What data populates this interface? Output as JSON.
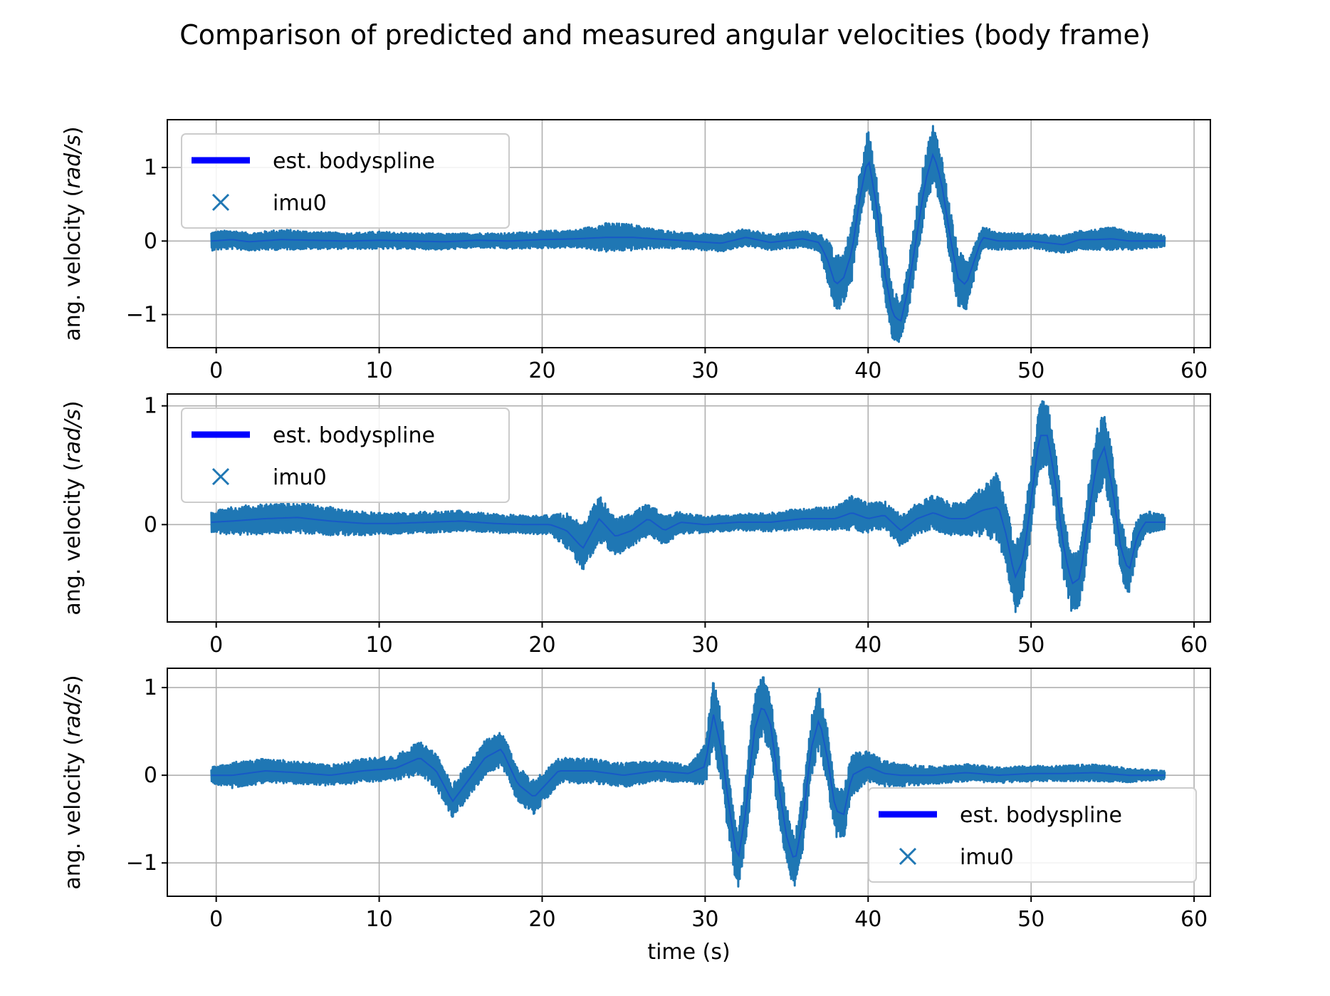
{
  "figure": {
    "title": "Comparison of predicted and measured angular velocities (body frame)"
  },
  "colors": {
    "imu": "#1f77b4",
    "spline": "#0000ff",
    "grid": "#b0b0b0",
    "axis": "#000000",
    "legend_edge": "#cccccc"
  },
  "chart_data": [
    {
      "type": "line",
      "panel": "top",
      "xlim": [
        -3,
        61
      ],
      "ylim": [
        -1.45,
        1.65
      ],
      "xticks": [
        0,
        10,
        20,
        30,
        40,
        50,
        60
      ],
      "xtick_labels": [
        "0",
        "10",
        "20",
        "30",
        "40",
        "50",
        "60"
      ],
      "yticks": [
        1,
        0,
        -1
      ],
      "ytick_labels": [
        "1",
        "0",
        "−1"
      ],
      "xlabel": "",
      "ylabel": "ang. velocity (rad/s)",
      "ylabel_plain": "ang. velocity (",
      "ylabel_unit": "rad/s",
      "ylabel_close": ")",
      "grid": true,
      "legend_position": "upper left",
      "series": [
        {
          "name": "est. bodyspline",
          "style": "thick line"
        },
        {
          "name": "imu0",
          "marker": "x"
        }
      ],
      "x": [
        -0.3,
        1,
        2,
        4,
        6,
        8,
        10,
        12,
        14,
        16,
        18,
        20,
        22,
        24,
        25.5,
        27,
        29,
        31,
        32.5,
        34,
        36,
        37,
        37.5,
        38,
        38.5,
        39,
        39.5,
        40,
        40.5,
        41,
        41.5,
        42,
        42.5,
        43,
        43.5,
        44,
        44.5,
        45,
        45.5,
        46,
        47,
        48,
        50,
        52,
        53,
        54,
        55,
        56,
        57,
        58.2
      ],
      "center": [
        0,
        0.02,
        -0.01,
        0.02,
        0.01,
        0,
        0.01,
        0,
        -0.01,
        0.01,
        0,
        0.02,
        0.03,
        0.05,
        0.05,
        0.03,
        0,
        -0.03,
        0.05,
        -0.02,
        0.03,
        -0.02,
        -0.25,
        -0.6,
        -0.5,
        -0.15,
        0.6,
        1.15,
        0.5,
        -0.4,
        -1.0,
        -1.1,
        -0.6,
        0.1,
        0.8,
        1.2,
        0.8,
        0.1,
        -0.5,
        -0.6,
        0.05,
        0,
        0,
        -0.05,
        0.02,
        0.02,
        0.03,
        0,
        0,
        0
      ],
      "amplitude": [
        0.13,
        0.13,
        0.12,
        0.14,
        0.12,
        0.11,
        0.12,
        0.11,
        0.11,
        0.1,
        0.11,
        0.12,
        0.12,
        0.2,
        0.18,
        0.13,
        0.11,
        0.12,
        0.12,
        0.11,
        0.11,
        0.12,
        0.3,
        0.4,
        0.35,
        0.4,
        0.4,
        0.4,
        0.4,
        0.4,
        0.35,
        0.3,
        0.35,
        0.4,
        0.4,
        0.4,
        0.4,
        0.4,
        0.4,
        0.35,
        0.15,
        0.12,
        0.1,
        0.12,
        0.13,
        0.14,
        0.16,
        0.13,
        0.1,
        0.08
      ]
    },
    {
      "type": "line",
      "panel": "middle",
      "xlim": [
        -3,
        61
      ],
      "ylim": [
        -0.82,
        1.1
      ],
      "xticks": [
        0,
        10,
        20,
        30,
        40,
        50,
        60
      ],
      "xtick_labels": [
        "0",
        "10",
        "20",
        "30",
        "40",
        "50",
        "60"
      ],
      "yticks": [
        1,
        0
      ],
      "ytick_labels": [
        "1",
        "0"
      ],
      "xlabel": "",
      "ylabel": "ang. velocity (rad/s)",
      "ylabel_plain": "ang. velocity (",
      "ylabel_unit": "rad/s",
      "ylabel_close": ")",
      "grid": true,
      "legend_position": "upper left",
      "series": [
        {
          "name": "est. bodyspline",
          "style": "thick line"
        },
        {
          "name": "imu0",
          "marker": "x"
        }
      ],
      "x": [
        -0.3,
        1,
        3,
        5,
        7,
        9,
        11,
        13,
        15,
        17,
        19,
        20.5,
        21.5,
        22.5,
        23.5,
        24.5,
        25.5,
        26.5,
        27.5,
        28.5,
        30,
        32,
        34,
        36,
        38,
        39,
        40,
        41,
        42,
        43,
        44,
        45,
        46,
        47,
        48,
        48.5,
        49,
        49.5,
        50,
        50.5,
        51,
        51.5,
        52,
        52.5,
        53,
        53.5,
        54,
        54.5,
        55,
        55.5,
        56,
        56.5,
        57,
        58.2
      ],
      "center": [
        0.02,
        0.03,
        0.05,
        0.06,
        0.03,
        0.01,
        0.01,
        0.02,
        0.03,
        0.01,
        0,
        0,
        -0.05,
        -0.2,
        0.05,
        -0.1,
        -0.05,
        0.05,
        -0.05,
        0.02,
        0,
        0.02,
        0.02,
        0.05,
        0.05,
        0.1,
        0.05,
        0.08,
        -0.05,
        0.05,
        0.1,
        0.05,
        0.05,
        0.12,
        0.15,
        -0.1,
        -0.45,
        -0.3,
        0.2,
        0.75,
        0.75,
        0.35,
        -0.2,
        -0.5,
        -0.45,
        0.05,
        0.5,
        0.65,
        0.3,
        -0.2,
        -0.4,
        -0.1,
        0.02,
        0.02
      ],
      "amplitude": [
        0.09,
        0.12,
        0.13,
        0.13,
        0.12,
        0.1,
        0.09,
        0.09,
        0.09,
        0.08,
        0.08,
        0.08,
        0.15,
        0.2,
        0.2,
        0.16,
        0.15,
        0.15,
        0.12,
        0.1,
        0.07,
        0.07,
        0.08,
        0.09,
        0.1,
        0.15,
        0.13,
        0.12,
        0.14,
        0.13,
        0.15,
        0.14,
        0.14,
        0.22,
        0.3,
        0.28,
        0.3,
        0.3,
        0.3,
        0.3,
        0.28,
        0.28,
        0.28,
        0.25,
        0.25,
        0.28,
        0.3,
        0.3,
        0.3,
        0.25,
        0.2,
        0.15,
        0.1,
        0.06
      ]
    },
    {
      "type": "line",
      "panel": "bottom",
      "xlim": [
        -3,
        61
      ],
      "ylim": [
        -1.38,
        1.22
      ],
      "xticks": [
        0,
        10,
        20,
        30,
        40,
        50,
        60
      ],
      "xtick_labels": [
        "0",
        "10",
        "20",
        "30",
        "40",
        "50",
        "60"
      ],
      "yticks": [
        1,
        0,
        -1
      ],
      "ytick_labels": [
        "1",
        "0",
        "−1"
      ],
      "xlabel": "time (s)",
      "ylabel": "ang. velocity (rad/s)",
      "ylabel_plain": "ang. velocity (",
      "ylabel_unit": "rad/s",
      "ylabel_close": ")",
      "grid": true,
      "legend_position": "lower right",
      "series": [
        {
          "name": "est. bodyspline",
          "style": "thick line"
        },
        {
          "name": "imu0",
          "marker": "x"
        }
      ],
      "x": [
        -0.3,
        1,
        3,
        5,
        7,
        9,
        11,
        12.5,
        13.5,
        14.5,
        15.5,
        16.5,
        17.5,
        18.5,
        19.5,
        21,
        23,
        25,
        27,
        29,
        30,
        30.5,
        31,
        31.5,
        32,
        32.5,
        33,
        33.5,
        34,
        34.5,
        35,
        35.5,
        36,
        36.5,
        37,
        37.5,
        38,
        38.5,
        39,
        40,
        41,
        42,
        44,
        46,
        48,
        50,
        52,
        54,
        56,
        58.2
      ],
      "center": [
        0,
        0,
        0.05,
        0.03,
        0,
        0.05,
        0.08,
        0.2,
        0.05,
        -0.3,
        -0.05,
        0.2,
        0.3,
        -0.1,
        -0.25,
        0.05,
        0.05,
        0,
        0.05,
        0.02,
        0.1,
        0.7,
        0.3,
        -0.4,
        -1.0,
        -0.4,
        0.5,
        0.8,
        0.6,
        -0.1,
        -0.7,
        -1.0,
        -0.5,
        0.3,
        0.65,
        0.2,
        -0.4,
        -0.45,
        0,
        0.1,
        0.02,
        0,
        0,
        0.03,
        0,
        0.02,
        0.02,
        0.03,
        0,
        0
      ],
      "amplitude": [
        0.1,
        0.15,
        0.14,
        0.13,
        0.12,
        0.14,
        0.14,
        0.2,
        0.2,
        0.2,
        0.2,
        0.2,
        0.2,
        0.2,
        0.2,
        0.15,
        0.14,
        0.14,
        0.12,
        0.1,
        0.25,
        0.4,
        0.4,
        0.4,
        0.35,
        0.4,
        0.4,
        0.35,
        0.35,
        0.4,
        0.35,
        0.3,
        0.35,
        0.35,
        0.35,
        0.35,
        0.3,
        0.3,
        0.25,
        0.18,
        0.15,
        0.13,
        0.1,
        0.1,
        0.09,
        0.09,
        0.09,
        0.1,
        0.08,
        0.05
      ]
    }
  ]
}
